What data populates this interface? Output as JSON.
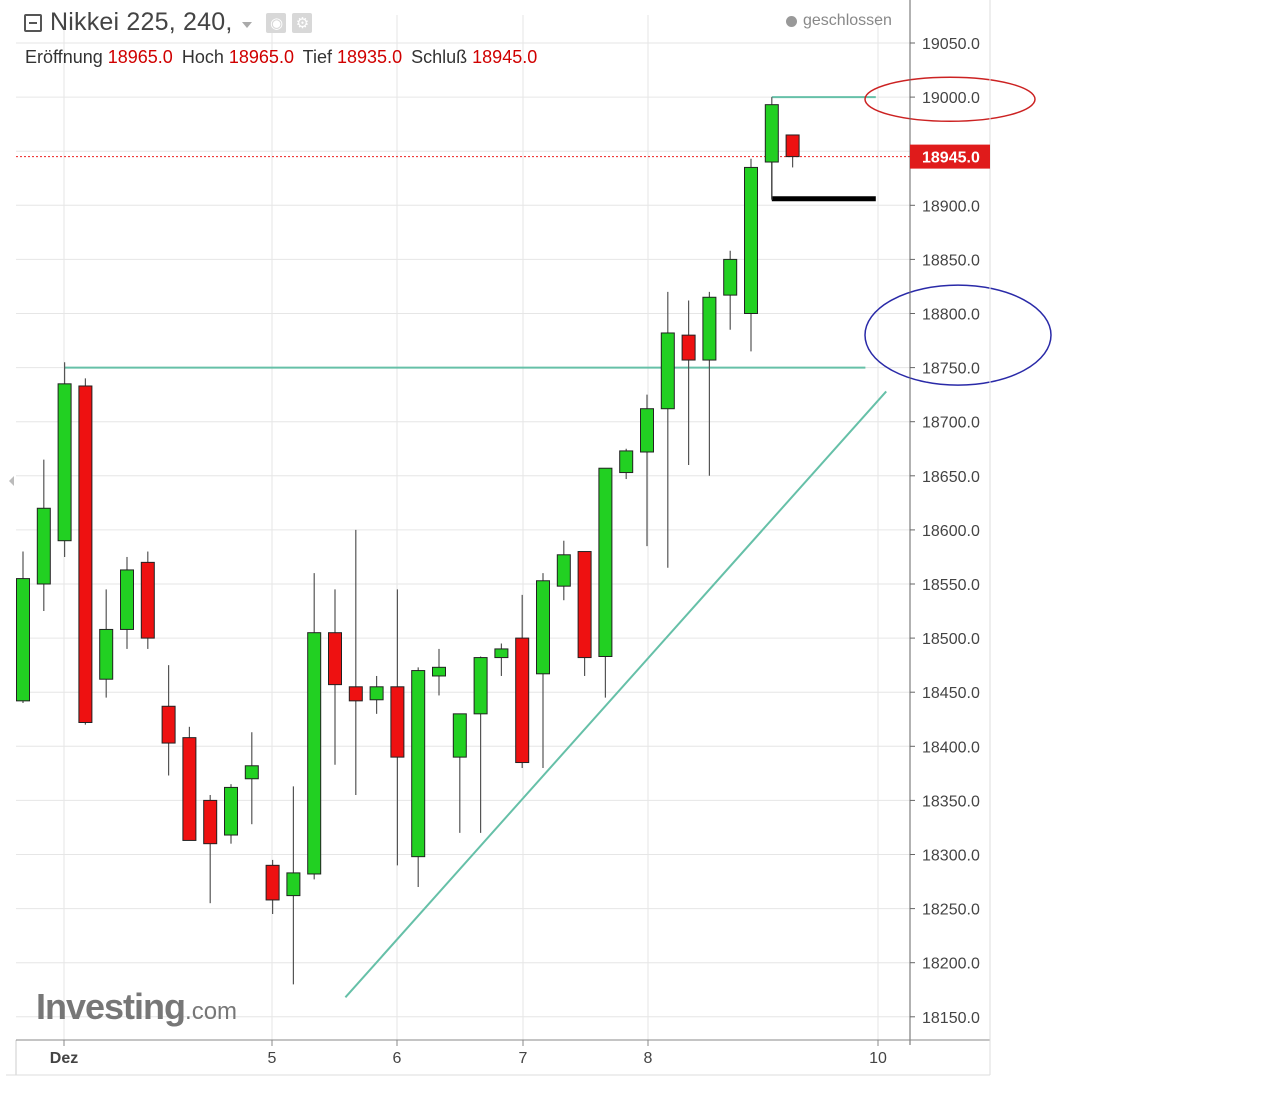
{
  "header": {
    "title": "Nikkei 225, 240,",
    "ohlc": [
      {
        "label": "Eröffnung",
        "value": "18965.0"
      },
      {
        "label": "Hoch",
        "value": "18965.0"
      },
      {
        "label": "Tief",
        "value": "18935.0"
      },
      {
        "label": "Schluß",
        "value": "18945.0"
      }
    ],
    "status": "geschlossen"
  },
  "watermark": {
    "brand": "Investing",
    "suffix": ".com"
  },
  "icons": {
    "collapse": "collapse-icon",
    "visibility": "eye-icon",
    "settings": "gear-icon",
    "menu": "chevron-down-icon"
  },
  "colors": {
    "up": "#22d022",
    "down": "#ee1111",
    "price_line": "#ee2222",
    "trendline": "#66c0a8",
    "marker_red": "#cc2222",
    "marker_blue": "#2a2aa8"
  },
  "chart_data": {
    "type": "candlestick",
    "ylim": [
      18150,
      19050
    ],
    "y_ticks": [
      "19050.0",
      "19000.0",
      "18950.0",
      "18900.0",
      "18850.0",
      "18800.0",
      "18750.0",
      "18700.0",
      "18650.0",
      "18600.0",
      "18550.0",
      "18500.0",
      "18450.0",
      "18400.0",
      "18350.0",
      "18300.0",
      "18250.0",
      "18200.0",
      "18150.0"
    ],
    "x_labels": [
      "Dez",
      "5",
      "6",
      "7",
      "8",
      "10"
    ],
    "last_price": "18945.0",
    "candles": [
      {
        "o": 18442,
        "h": 18580,
        "l": 18440,
        "c": 18555
      },
      {
        "o": 18550,
        "h": 18665,
        "l": 18525,
        "c": 18620
      },
      {
        "o": 18590,
        "h": 18755,
        "l": 18575,
        "c": 18735
      },
      {
        "o": 18733,
        "h": 18740,
        "l": 18420,
        "c": 18422
      },
      {
        "o": 18462,
        "h": 18545,
        "l": 18445,
        "c": 18508
      },
      {
        "o": 18508,
        "h": 18575,
        "l": 18490,
        "c": 18563
      },
      {
        "o": 18570,
        "h": 18580,
        "l": 18490,
        "c": 18500
      },
      {
        "o": 18437,
        "h": 18475,
        "l": 18373,
        "c": 18403
      },
      {
        "o": 18408,
        "h": 18418,
        "l": 18313,
        "c": 18313
      },
      {
        "o": 18350,
        "h": 18355,
        "l": 18255,
        "c": 18310
      },
      {
        "o": 18318,
        "h": 18365,
        "l": 18310,
        "c": 18362
      },
      {
        "o": 18370,
        "h": 18413,
        "l": 18328,
        "c": 18382
      },
      {
        "o": 18290,
        "h": 18295,
        "l": 18245,
        "c": 18258
      },
      {
        "o": 18262,
        "h": 18363,
        "l": 18180,
        "c": 18283
      },
      {
        "o": 18282,
        "h": 18560,
        "l": 18277,
        "c": 18505
      },
      {
        "o": 18505,
        "h": 18545,
        "l": 18383,
        "c": 18457
      },
      {
        "o": 18455,
        "h": 18600,
        "l": 18355,
        "c": 18442
      },
      {
        "o": 18443,
        "h": 18465,
        "l": 18430,
        "c": 18455
      },
      {
        "o": 18455,
        "h": 18545,
        "l": 18290,
        "c": 18390
      },
      {
        "o": 18298,
        "h": 18473,
        "l": 18270,
        "c": 18470
      },
      {
        "o": 18465,
        "h": 18490,
        "l": 18447,
        "c": 18473
      },
      {
        "o": 18390,
        "h": 18430,
        "l": 18320,
        "c": 18430
      },
      {
        "o": 18430,
        "h": 18483,
        "l": 18320,
        "c": 18482
      },
      {
        "o": 18482,
        "h": 18495,
        "l": 18465,
        "c": 18490
      },
      {
        "o": 18500,
        "h": 18540,
        "l": 18380,
        "c": 18385
      },
      {
        "o": 18467,
        "h": 18560,
        "l": 18380,
        "c": 18553
      },
      {
        "o": 18548,
        "h": 18590,
        "l": 18535,
        "c": 18577
      },
      {
        "o": 18580,
        "h": 18580,
        "l": 18465,
        "c": 18482
      },
      {
        "o": 18483,
        "h": 18657,
        "l": 18445,
        "c": 18657
      },
      {
        "o": 18653,
        "h": 18675,
        "l": 18647,
        "c": 18673
      },
      {
        "o": 18672,
        "h": 18725,
        "l": 18585,
        "c": 18712
      },
      {
        "o": 18712,
        "h": 18820,
        "l": 18565,
        "c": 18782
      },
      {
        "o": 18780,
        "h": 18812,
        "l": 18660,
        "c": 18757
      },
      {
        "o": 18757,
        "h": 18820,
        "l": 18650,
        "c": 18815
      },
      {
        "o": 18817,
        "h": 18858,
        "l": 18785,
        "c": 18850
      },
      {
        "o": 18800,
        "h": 18943,
        "l": 18765,
        "c": 18935
      },
      {
        "o": 18940,
        "h": 19000,
        "l": 18905,
        "c": 18993
      },
      {
        "o": 18965,
        "h": 18965,
        "l": 18935,
        "c": 18945
      }
    ],
    "annotations": {
      "horizontal_lines": [
        {
          "y": 18750,
          "x_from_candle": 2,
          "x_to_candle": 40.5
        },
        {
          "y": 19000,
          "x_from_candle": 36,
          "x_to_candle": 41
        },
        {
          "y": 18906,
          "x_from_candle": 36,
          "x_to_candle": 41
        }
      ],
      "trendline": {
        "from": {
          "candle": 15.5,
          "y": 18168
        },
        "to": {
          "candle": 41.5,
          "y": 18728
        }
      },
      "ellipses": [
        {
          "center_y": 18998,
          "center_candle": 42.8
        },
        {
          "center_y": 18780,
          "center_candle": 42.8
        }
      ]
    }
  }
}
